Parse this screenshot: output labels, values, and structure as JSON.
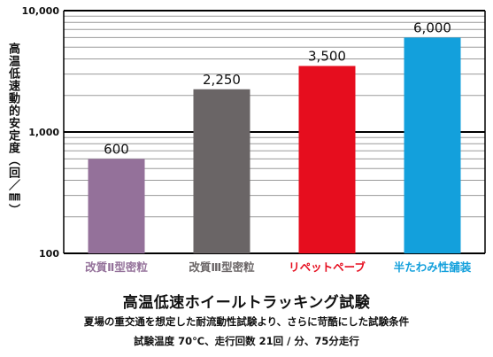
{
  "chart_data": {
    "type": "bar",
    "scale": "log",
    "ylim": [
      100,
      10000
    ],
    "yticks": [
      "100",
      "1,000",
      "10,000"
    ],
    "ylabel": "高温低速動的安定度（回／㎜）",
    "categories": [
      "改質Ⅱ型密粒",
      "改質Ⅲ型密粒",
      "リペットペーブ",
      "半たわみ性舗装"
    ],
    "values": [
      600,
      2250,
      3500,
      6000
    ],
    "value_labels": [
      "600",
      "2,250",
      "3,500",
      "6,000"
    ],
    "colors": [
      "#94719a",
      "#6a6566",
      "#e60d1e",
      "#13a0dc"
    ],
    "category_colors": [
      "#94719a",
      "#6a6566",
      "#e60d1e",
      "#13a0dc"
    ],
    "grid": true
  },
  "caption": {
    "title": "高温低速ホイールトラッキング試験",
    "line1": "夏場の重交通を想定した耐流動性試験より、さらに苛酷にした試験条件",
    "line2": "試験温度 70℃、走行回数 21回 / 分、75分走行"
  }
}
